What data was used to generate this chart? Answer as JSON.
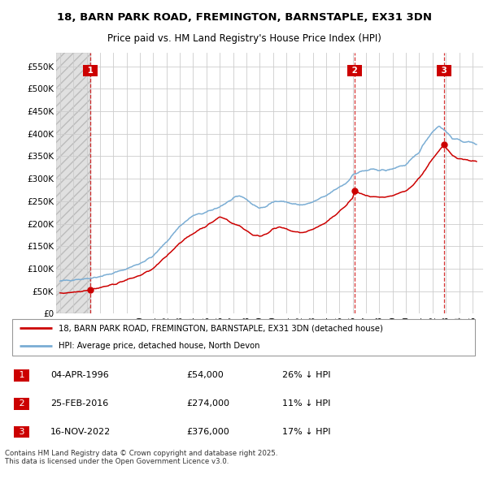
{
  "title_line1": "18, BARN PARK ROAD, FREMINGTON, BARNSTAPLE, EX31 3DN",
  "title_line2": "Price paid vs. HM Land Registry's House Price Index (HPI)",
  "ylabel_ticks": [
    "£0",
    "£50K",
    "£100K",
    "£150K",
    "£200K",
    "£250K",
    "£300K",
    "£350K",
    "£400K",
    "£450K",
    "£500K",
    "£550K"
  ],
  "ytick_values": [
    0,
    50000,
    100000,
    150000,
    200000,
    250000,
    300000,
    350000,
    400000,
    450000,
    500000,
    550000
  ],
  "ylim": [
    0,
    580000
  ],
  "xlim_start": 1993.7,
  "xlim_end": 2025.8,
  "transactions": [
    {
      "num": 1,
      "date": "04-APR-1996",
      "price": 54000,
      "hpi_diff": "26% ↓ HPI",
      "year": 1996.27
    },
    {
      "num": 2,
      "date": "25-FEB-2016",
      "price": 274000,
      "hpi_diff": "11% ↓ HPI",
      "year": 2016.15
    },
    {
      "num": 3,
      "date": "16-NOV-2022",
      "price": 376000,
      "hpi_diff": "17% ↓ HPI",
      "year": 2022.88
    }
  ],
  "legend_line1": "18, BARN PARK ROAD, FREMINGTON, BARNSTAPLE, EX31 3DN (detached house)",
  "legend_line2": "HPI: Average price, detached house, North Devon",
  "footnote": "Contains HM Land Registry data © Crown copyright and database right 2025.\nThis data is licensed under the Open Government Licence v3.0.",
  "sale_color": "#cc0000",
  "hpi_color": "#7aadd4",
  "vline_color": "#cc0000",
  "background_plot": "#ffffff",
  "grid_color": "#cccccc",
  "hpi_keypoints": [
    [
      1994.0,
      72000
    ],
    [
      1995.0,
      76000
    ],
    [
      1996.0,
      78000
    ],
    [
      1997.0,
      83000
    ],
    [
      1998.0,
      90000
    ],
    [
      1999.0,
      100000
    ],
    [
      2000.0,
      112000
    ],
    [
      2001.0,
      128000
    ],
    [
      2002.0,
      160000
    ],
    [
      2003.0,
      195000
    ],
    [
      2004.0,
      218000
    ],
    [
      2005.0,
      225000
    ],
    [
      2006.0,
      238000
    ],
    [
      2007.0,
      255000
    ],
    [
      2007.5,
      262000
    ],
    [
      2008.0,
      255000
    ],
    [
      2008.5,
      242000
    ],
    [
      2009.0,
      235000
    ],
    [
      2009.5,
      238000
    ],
    [
      2010.0,
      248000
    ],
    [
      2010.5,
      252000
    ],
    [
      2011.0,
      248000
    ],
    [
      2011.5,
      244000
    ],
    [
      2012.0,
      242000
    ],
    [
      2012.5,
      243000
    ],
    [
      2013.0,
      248000
    ],
    [
      2013.5,
      255000
    ],
    [
      2014.0,
      262000
    ],
    [
      2014.5,
      272000
    ],
    [
      2015.0,
      282000
    ],
    [
      2015.5,
      290000
    ],
    [
      2016.0,
      308000
    ],
    [
      2016.5,
      315000
    ],
    [
      2017.0,
      318000
    ],
    [
      2017.5,
      320000
    ],
    [
      2018.0,
      320000
    ],
    [
      2018.5,
      318000
    ],
    [
      2019.0,
      322000
    ],
    [
      2019.5,
      328000
    ],
    [
      2020.0,
      330000
    ],
    [
      2020.5,
      345000
    ],
    [
      2021.0,
      360000
    ],
    [
      2021.5,
      385000
    ],
    [
      2022.0,
      405000
    ],
    [
      2022.5,
      418000
    ],
    [
      2023.0,
      405000
    ],
    [
      2023.5,
      390000
    ],
    [
      2024.0,
      385000
    ],
    [
      2024.5,
      382000
    ],
    [
      2025.0,
      380000
    ],
    [
      2025.3,
      378000
    ]
  ],
  "prop_keypoints": [
    [
      1994.0,
      45000
    ],
    [
      1994.5,
      47000
    ],
    [
      1995.0,
      48000
    ],
    [
      1995.5,
      50000
    ],
    [
      1996.27,
      54000
    ],
    [
      1997.0,
      58000
    ],
    [
      1998.0,
      65000
    ],
    [
      1999.0,
      75000
    ],
    [
      2000.0,
      85000
    ],
    [
      2001.0,
      100000
    ],
    [
      2002.0,
      128000
    ],
    [
      2003.0,
      158000
    ],
    [
      2004.0,
      178000
    ],
    [
      2004.5,
      188000
    ],
    [
      2005.0,
      195000
    ],
    [
      2005.5,
      205000
    ],
    [
      2006.0,
      215000
    ],
    [
      2006.5,
      210000
    ],
    [
      2007.0,
      200000
    ],
    [
      2007.5,
      195000
    ],
    [
      2008.0,
      185000
    ],
    [
      2008.5,
      175000
    ],
    [
      2009.0,
      172000
    ],
    [
      2009.5,
      178000
    ],
    [
      2010.0,
      188000
    ],
    [
      2010.5,
      192000
    ],
    [
      2011.0,
      188000
    ],
    [
      2011.5,
      183000
    ],
    [
      2012.0,
      180000
    ],
    [
      2012.5,
      182000
    ],
    [
      2013.0,
      188000
    ],
    [
      2013.5,
      195000
    ],
    [
      2014.0,
      202000
    ],
    [
      2014.5,
      215000
    ],
    [
      2015.0,
      228000
    ],
    [
      2015.5,
      240000
    ],
    [
      2016.0,
      258000
    ],
    [
      2016.15,
      274000
    ],
    [
      2016.5,
      268000
    ],
    [
      2017.0,
      262000
    ],
    [
      2017.5,
      260000
    ],
    [
      2018.0,
      258000
    ],
    [
      2018.5,
      258000
    ],
    [
      2019.0,
      262000
    ],
    [
      2019.5,
      268000
    ],
    [
      2020.0,
      272000
    ],
    [
      2020.5,
      285000
    ],
    [
      2021.0,
      302000
    ],
    [
      2021.5,
      322000
    ],
    [
      2022.0,
      345000
    ],
    [
      2022.5,
      362000
    ],
    [
      2022.88,
      376000
    ],
    [
      2023.0,
      368000
    ],
    [
      2023.5,
      352000
    ],
    [
      2024.0,
      345000
    ],
    [
      2024.5,
      342000
    ],
    [
      2025.0,
      340000
    ],
    [
      2025.3,
      338000
    ]
  ]
}
